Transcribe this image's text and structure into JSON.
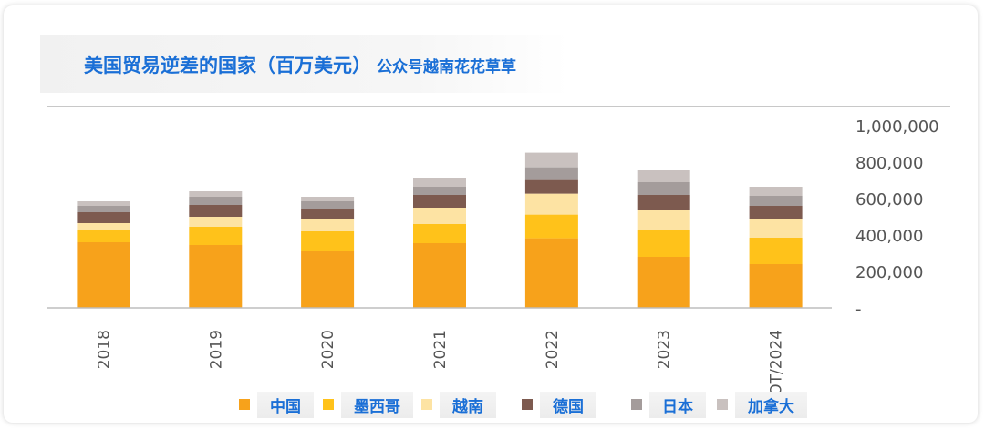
{
  "title": {
    "main": "美国贸易逆差的国家（百万美元）",
    "sub": "公众号越南花花草草"
  },
  "chart_data": {
    "type": "bar",
    "stacked": true,
    "categories": [
      "2018",
      "2019",
      "2020",
      "2021",
      "2022",
      "2023",
      "OT/2024"
    ],
    "y_ticks": [
      "-",
      "200,000",
      "400,000",
      "600,000",
      "800,000",
      "1,000,000"
    ],
    "ylim": [
      0,
      1000000
    ],
    "grid": false,
    "legend_position": "bottom",
    "series": [
      {
        "name": "中国",
        "color": "#f7a21b",
        "values": [
          360000,
          345000,
          310000,
          355000,
          382000,
          280000,
          240000
        ]
      },
      {
        "name": "墨西哥",
        "color": "#ffc21a",
        "values": [
          70000,
          100000,
          110000,
          105000,
          130000,
          150000,
          145000
        ]
      },
      {
        "name": "越南",
        "color": "#fde3a3",
        "values": [
          35000,
          55000,
          70000,
          90000,
          115000,
          105000,
          105000
        ]
      },
      {
        "name": "德国",
        "color": "#7d5a4f",
        "values": [
          60000,
          65000,
          55000,
          70000,
          75000,
          85000,
          70000
        ]
      },
      {
        "name": "日本",
        "color": "#a49c9b",
        "values": [
          35000,
          45000,
          40000,
          45000,
          70000,
          70000,
          55000
        ]
      },
      {
        "name": "加拿大",
        "color": "#c9c1bf",
        "values": [
          25000,
          30000,
          25000,
          50000,
          80000,
          65000,
          50000
        ]
      }
    ]
  }
}
